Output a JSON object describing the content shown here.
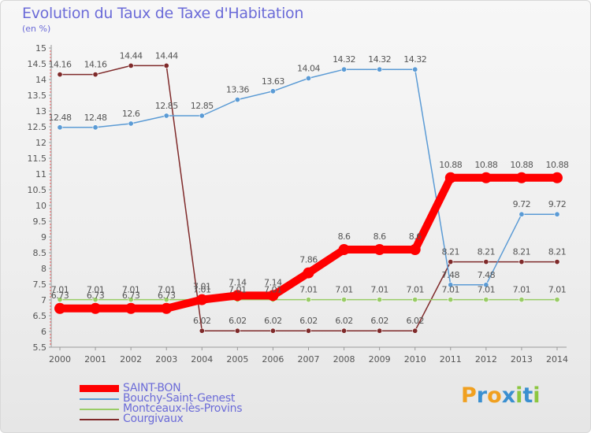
{
  "chart_data": {
    "type": "line",
    "title": "Evolution du Taux de Taxe d'Habitation",
    "ylabel": "(en %)",
    "ylim": [
      5.5,
      15
    ],
    "yticks": [
      "5.5",
      "6",
      "6.5",
      "7",
      "7.5",
      "8",
      "8.5",
      "9",
      "9.5",
      "10",
      "10.5",
      "11",
      "11.5",
      "12",
      "12.5",
      "13",
      "13.5",
      "14",
      "14.5",
      "15"
    ],
    "x": [
      "2000",
      "2001",
      "2002",
      "2003",
      "2004",
      "2005",
      "2006",
      "2007",
      "2008",
      "2009",
      "2010",
      "2011",
      "2012",
      "2013",
      "2014"
    ],
    "grid": false,
    "legend_position": "bottom-left",
    "series": [
      {
        "name": "SAINT-BON",
        "color": "#ff0000",
        "values": [
          6.73,
          6.73,
          6.73,
          6.73,
          7.01,
          7.14,
          7.14,
          7.86,
          8.6,
          8.6,
          8.6,
          10.88,
          10.88,
          10.88,
          10.88
        ],
        "labels": [
          "6.73",
          "6.73",
          "6.73",
          "6.73",
          "7.01",
          "7.14",
          "7.14",
          "7.86",
          "8.6",
          "8.6",
          "8.6",
          "10.88",
          "10.88",
          "10.88",
          "10.88"
        ]
      },
      {
        "name": "Bouchy-Saint-Genest",
        "color": "#5b9bd5",
        "values": [
          12.48,
          12.48,
          12.6,
          12.85,
          12.85,
          13.36,
          13.63,
          14.04,
          14.32,
          14.32,
          14.32,
          7.48,
          7.48,
          9.72,
          9.72
        ],
        "labels": [
          "12.48",
          "12.48",
          "12.6",
          "12.85",
          "12.85",
          "13.36",
          "13.63",
          "14.04",
          "14.32",
          "14.32",
          "14.32",
          "7.48",
          "7.48",
          "9.72",
          "9.72"
        ]
      },
      {
        "name": "Montceaux-lès-Provins",
        "color": "#99cc66",
        "values": [
          7.01,
          7.01,
          7.01,
          7.01,
          7.01,
          7.01,
          7.01,
          7.01,
          7.01,
          7.01,
          7.01,
          7.01,
          7.01,
          7.01,
          7.01
        ],
        "labels": [
          "7.01",
          "7.01",
          "7.01",
          "7.01",
          "7.01",
          "7.01",
          "7.01",
          "7.01",
          "7.01",
          "7.01",
          "7.01",
          "7.01",
          "7.01",
          "7.01",
          "7.01"
        ]
      },
      {
        "name": "Courgivaux",
        "color": "#7f2a2a",
        "values": [
          14.16,
          14.16,
          14.44,
          14.44,
          6.02,
          6.02,
          6.02,
          6.02,
          6.02,
          6.02,
          6.02,
          8.21,
          8.21,
          8.21,
          8.21
        ],
        "labels": [
          "14.16",
          "14.16",
          "14.44",
          "14.44",
          "6.02",
          "6.02",
          "6.02",
          "6.02",
          "6.02",
          "6.02",
          "6.02",
          "8.21",
          "8.21",
          "8.21",
          "8.21"
        ]
      }
    ]
  },
  "logo": {
    "letters": [
      "P",
      "r",
      "o",
      "x",
      "i",
      "t",
      "i"
    ],
    "colors": [
      "#f0a020",
      "#3a8fd0",
      "#f0a020",
      "#3a8fd0",
      "#8cc63f",
      "#3a8fd0",
      "#8cc63f"
    ]
  }
}
